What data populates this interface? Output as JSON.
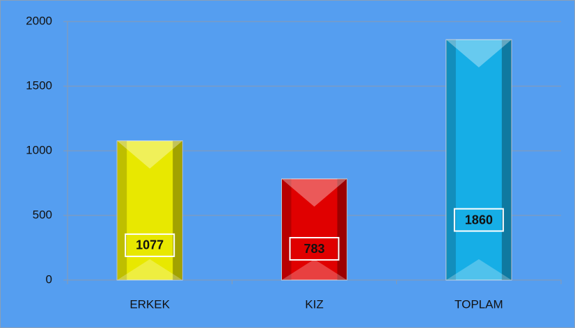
{
  "chart_data": {
    "type": "bar",
    "categories": [
      "ERKEK",
      "KIZ",
      "TOPLAM"
    ],
    "values": [
      1077,
      783,
      1860
    ],
    "colors": [
      "#e8e800",
      "#e00000",
      "#16aee6"
    ],
    "ylim": [
      0,
      2000
    ],
    "yticks": [
      0,
      500,
      1000,
      1500,
      2000
    ],
    "grid": true,
    "data_labels": true,
    "background": "#559ef0"
  }
}
